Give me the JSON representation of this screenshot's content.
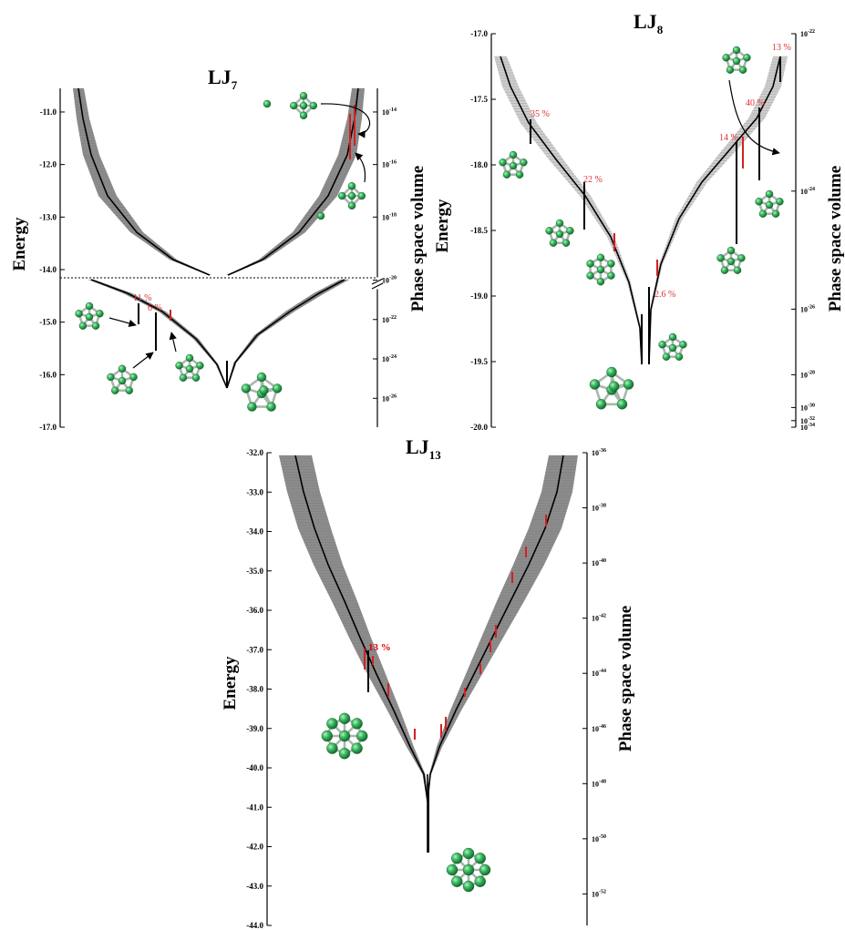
{
  "colors": {
    "band": "#8c8c8c",
    "band_light": "#cfcfcf",
    "trunk": "#000000",
    "highlight": "#d42020",
    "atom": "#3dba62",
    "bond": "#a9b7ad"
  },
  "chart_data": [
    {
      "id": "lj7",
      "type": "line",
      "title_base": "LJ",
      "title_sub": "7",
      "ylabel": "Energy",
      "y2label": "Phase space volume",
      "ylim": [
        -17.0,
        -10.55
      ],
      "y_ticks": [
        "-11.0",
        "-12.0",
        "-13.0",
        "-14.0",
        "-15.0",
        "-16.0",
        "-17.0"
      ],
      "y_tick_values": [
        -11,
        -12,
        -13,
        -14,
        -15,
        -16,
        -17
      ],
      "y2_upper_base": "10",
      "y2_upper_exp": [
        "-14",
        "-16",
        "-18",
        "-20"
      ],
      "y2_upper_energy": [
        -11.0,
        -12.0,
        -13.0,
        -14.2
      ],
      "y2_lower_base": "10",
      "y2_lower_exp": [
        "-20",
        "-22",
        "-24",
        "-26"
      ],
      "y2_lower_energy": [
        -14.2,
        -14.95,
        -15.7,
        -16.45
      ],
      "break_energy": -14.2,
      "percent_labels": [
        "11 %",
        "6 %"
      ],
      "percent_energy": [
        -14.8,
        -14.95
      ],
      "minima_energy": [
        -16.2,
        -15.0,
        -15.1,
        -15.5,
        -15.55
      ]
    },
    {
      "id": "lj8",
      "type": "line",
      "title_base": "LJ",
      "title_sub": "8",
      "ylabel": "Energy",
      "y2label": "Phase space volume",
      "ylim": [
        -20.0,
        -17.0
      ],
      "y_ticks": [
        "-17.0",
        "-17.5",
        "-18.0",
        "-18.5",
        "-19.0",
        "-19.5",
        "-20.0"
      ],
      "y_tick_values": [
        -17.0,
        -17.5,
        -18.0,
        -18.5,
        -19.0,
        -19.5,
        -20.0
      ],
      "y2_base": "10",
      "y2_exp": [
        "-22",
        "-24",
        "-26",
        "-28",
        "-30",
        "-32",
        "-34"
      ],
      "y2_energy": [
        -17.0,
        -18.2,
        -19.1,
        -19.6,
        -19.85,
        -19.95,
        -20.0
      ],
      "percent_labels": [
        "35 %",
        "22 %",
        "2.6 %",
        "14 %",
        "40 %",
        "13 %"
      ],
      "percent_energy": [
        -17.5,
        -18.0,
        -19.0,
        -17.85,
        -17.55,
        -17.1
      ],
      "minima_energy": [
        -19.5,
        -19.5,
        -18.95,
        -18.6,
        -18.2,
        -18.5,
        -18.7
      ]
    },
    {
      "id": "lj13",
      "type": "line",
      "title_base": "LJ",
      "title_sub": "13",
      "ylabel": "Energy",
      "y2label": "Phase space volume",
      "ylim": [
        -44.0,
        -32.0
      ],
      "y_ticks": [
        "-32.0",
        "-33.0",
        "-34.0",
        "-35.0",
        "-36.0",
        "-37.0",
        "-38.0",
        "-39.0",
        "-40.0",
        "-41.0",
        "-42.0",
        "-43.0",
        "-44.0"
      ],
      "y_tick_values": [
        -32,
        -33,
        -34,
        -35,
        -36,
        -37,
        -38,
        -39,
        -40,
        -41,
        -42,
        -43,
        -44
      ],
      "y2_base": "10",
      "y2_exp": [
        "-36",
        "-38",
        "-40",
        "-42",
        "-44",
        "-46",
        "-48",
        "-50",
        "-52",
        "-54"
      ],
      "y2_energy": [
        -32.0,
        -33.4,
        -34.8,
        -36.2,
        -37.6,
        -39.0,
        -40.4,
        -41.8,
        -43.2,
        -44.4
      ],
      "percent_labels": [
        "13 %"
      ],
      "percent_energy": [
        -37.0
      ],
      "minima_energy": [
        -42.2,
        -38.2
      ]
    }
  ]
}
